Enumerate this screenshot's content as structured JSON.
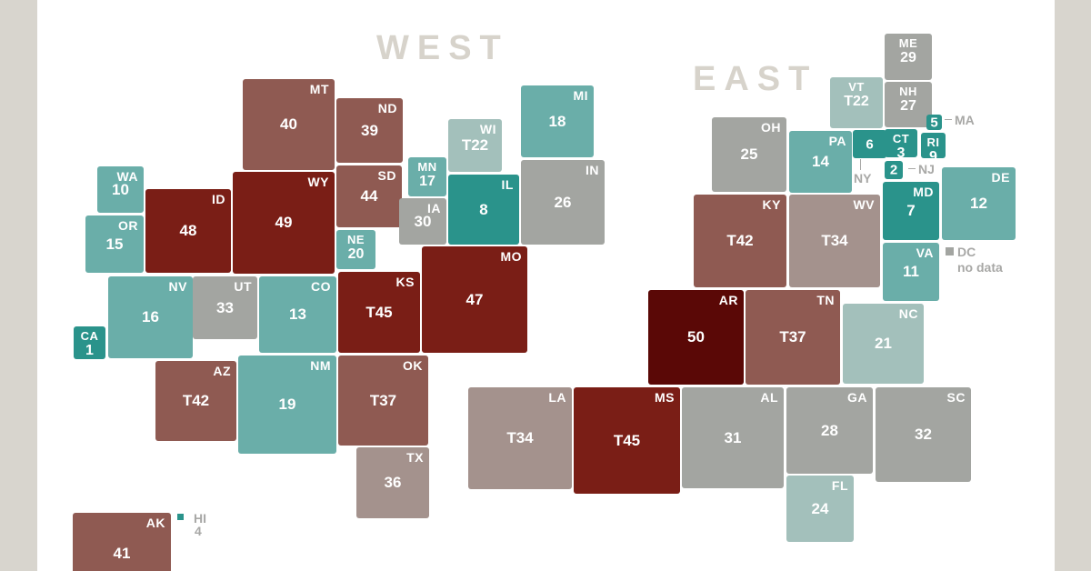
{
  "regions": {
    "west": "WEST",
    "east": "EAST"
  },
  "colors": {
    "background": "#d8d5ce",
    "canvas": "#ffffff",
    "region_label": "#d7d3cb",
    "external_label": "#a8a8a6",
    "scale": {
      "1-9": "#2a938b",
      "10-20": "#6aaea9",
      "21-24": "#a3c0bb",
      "25-33": "#a3a5a1",
      "34-36": "#a4928d",
      "40-44": "#8f5a52",
      "45-49": "#7a1e16",
      "50": "#5a0806"
    }
  },
  "states": [
    {
      "id": "ME",
      "abbr": "ME",
      "rank": "29"
    },
    {
      "id": "VT",
      "abbr": "VT",
      "rank": "T22"
    },
    {
      "id": "NH",
      "abbr": "NH",
      "rank": "27"
    },
    {
      "id": "MA",
      "abbr": "",
      "rank": "5"
    },
    {
      "id": "NY",
      "abbr": "",
      "rank": "6"
    },
    {
      "id": "CT",
      "abbr": "CT",
      "rank": "3"
    },
    {
      "id": "RI",
      "abbr": "RI",
      "rank": "9"
    },
    {
      "id": "NJ",
      "abbr": "",
      "rank": "2"
    },
    {
      "id": "MI",
      "abbr": "MI",
      "rank": "18"
    },
    {
      "id": "OH",
      "abbr": "OH",
      "rank": "25"
    },
    {
      "id": "PA",
      "abbr": "PA",
      "rank": "14"
    },
    {
      "id": "DE",
      "abbr": "DE",
      "rank": "12"
    },
    {
      "id": "MD",
      "abbr": "MD",
      "rank": "7"
    },
    {
      "id": "VA",
      "abbr": "VA",
      "rank": "11"
    },
    {
      "id": "WI",
      "abbr": "WI",
      "rank": "T22"
    },
    {
      "id": "IL",
      "abbr": "IL",
      "rank": "8"
    },
    {
      "id": "IN",
      "abbr": "IN",
      "rank": "26"
    },
    {
      "id": "KY",
      "abbr": "KY",
      "rank": "T42"
    },
    {
      "id": "WV",
      "abbr": "WV",
      "rank": "T34"
    },
    {
      "id": "NC",
      "abbr": "NC",
      "rank": "21"
    },
    {
      "id": "MT",
      "abbr": "MT",
      "rank": "40"
    },
    {
      "id": "ND",
      "abbr": "ND",
      "rank": "39"
    },
    {
      "id": "SD",
      "abbr": "SD",
      "rank": "44"
    },
    {
      "id": "MN",
      "abbr": "MN",
      "rank": "17"
    },
    {
      "id": "IA",
      "abbr": "IA",
      "rank": "30"
    },
    {
      "id": "WA",
      "abbr": "WA",
      "rank": "10"
    },
    {
      "id": "OR",
      "abbr": "OR",
      "rank": "15"
    },
    {
      "id": "ID",
      "abbr": "ID",
      "rank": "48"
    },
    {
      "id": "WY",
      "abbr": "WY",
      "rank": "49"
    },
    {
      "id": "NE",
      "abbr": "NE",
      "rank": "20"
    },
    {
      "id": "MO",
      "abbr": "MO",
      "rank": "47"
    },
    {
      "id": "NV",
      "abbr": "NV",
      "rank": "16"
    },
    {
      "id": "UT",
      "abbr": "UT",
      "rank": "33"
    },
    {
      "id": "CO",
      "abbr": "CO",
      "rank": "13"
    },
    {
      "id": "KS",
      "abbr": "KS",
      "rank": "T45"
    },
    {
      "id": "CA",
      "abbr": "CA",
      "rank": "1"
    },
    {
      "id": "AR",
      "abbr": "AR",
      "rank": "50"
    },
    {
      "id": "TN",
      "abbr": "TN",
      "rank": "T37"
    },
    {
      "id": "AZ",
      "abbr": "AZ",
      "rank": "T42"
    },
    {
      "id": "NM",
      "abbr": "NM",
      "rank": "19"
    },
    {
      "id": "OK",
      "abbr": "OK",
      "rank": "T37"
    },
    {
      "id": "LA",
      "abbr": "LA",
      "rank": "T34"
    },
    {
      "id": "MS",
      "abbr": "MS",
      "rank": "T45"
    },
    {
      "id": "AL",
      "abbr": "AL",
      "rank": "31"
    },
    {
      "id": "GA",
      "abbr": "GA",
      "rank": "28"
    },
    {
      "id": "SC",
      "abbr": "SC",
      "rank": "32"
    },
    {
      "id": "TX",
      "abbr": "TX",
      "rank": "36"
    },
    {
      "id": "FL",
      "abbr": "FL",
      "rank": "24"
    },
    {
      "id": "AK",
      "abbr": "AK",
      "rank": "41"
    }
  ],
  "external_labels": {
    "ma": "MA",
    "ny": "NY",
    "nj": "NJ",
    "dc_abbr": "DC",
    "dc_note": "no data",
    "hi_abbr": "HI",
    "hi_rank": "4"
  }
}
